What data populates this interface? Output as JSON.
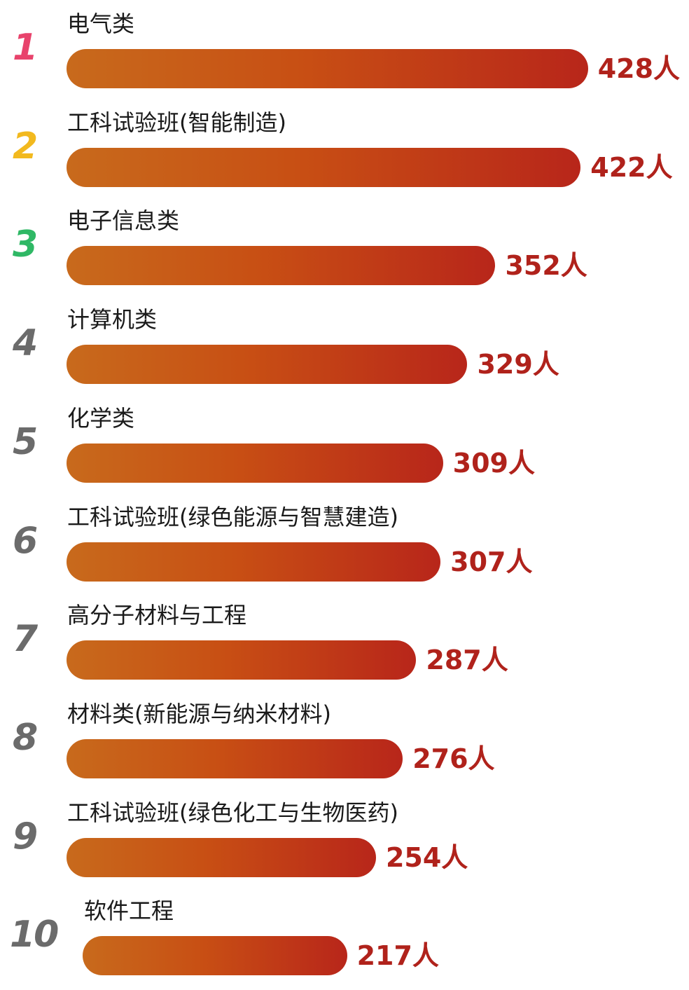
{
  "chart_data": {
    "type": "bar",
    "orientation": "horizontal",
    "ranks": [
      "1",
      "2",
      "3",
      "4",
      "5",
      "6",
      "7",
      "8",
      "9",
      "10"
    ],
    "categories": [
      "电气类",
      "工科试验班(智能制造)",
      "电子信息类",
      "计算机类",
      "化学类",
      "工科试验班(绿色能源与智慧建造)",
      "高分子材料与工程",
      "材料类(新能源与纳米材料)",
      "工科试验班(绿色化工与生物医药)",
      "软件工程"
    ],
    "values": [
      428,
      422,
      352,
      329,
      309,
      307,
      287,
      276,
      254,
      217
    ],
    "value_labels": [
      "428人",
      "422人",
      "352人",
      "329人",
      "309人",
      "307人",
      "287人",
      "276人",
      "254人",
      "217人"
    ],
    "rank_colors": [
      "#e8436c",
      "#f2b91e",
      "#2fb865",
      "#6b6b6b",
      "#6b6b6b",
      "#6b6b6b",
      "#6b6b6b",
      "#6b6b6b",
      "#6b6b6b",
      "#6b6b6b"
    ],
    "bar_gradient": [
      "#c86a1c",
      "#b8261a"
    ],
    "value_color": "#b0221b",
    "title": "",
    "xlabel": "",
    "ylabel": "",
    "grid": false,
    "legend": false
  }
}
